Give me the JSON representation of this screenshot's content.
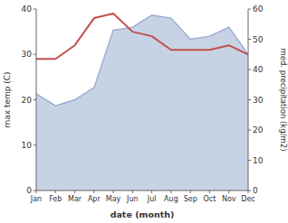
{
  "chart_data": {
    "type": "line",
    "xlabel": "date (month)",
    "ylabel": "max temp (C)",
    "y2label": "med. precipitation (kg/m2)",
    "categories": [
      "Jan",
      "Feb",
      "Mar",
      "Apr",
      "May",
      "Jun",
      "Jul",
      "Aug",
      "Sep",
      "Oct",
      "Nov",
      "Dec"
    ],
    "series": [
      {
        "type": "area",
        "axis": "y2",
        "color": "#9aadd0",
        "values": [
          32,
          28,
          30,
          34,
          53,
          54,
          58,
          57,
          50,
          51,
          54,
          45
        ]
      },
      {
        "type": "line",
        "color": "#c0504d",
        "values": [
          29,
          29,
          32,
          38,
          39,
          35,
          34,
          31,
          31,
          31,
          32,
          30
        ]
      }
    ],
    "ylim": [
      0,
      40
    ],
    "yticks": [
      0,
      10,
      20,
      30,
      40
    ],
    "y2lim": [
      0,
      60
    ],
    "y2ticks": [
      0,
      10,
      20,
      30,
      40,
      50,
      60
    ]
  }
}
